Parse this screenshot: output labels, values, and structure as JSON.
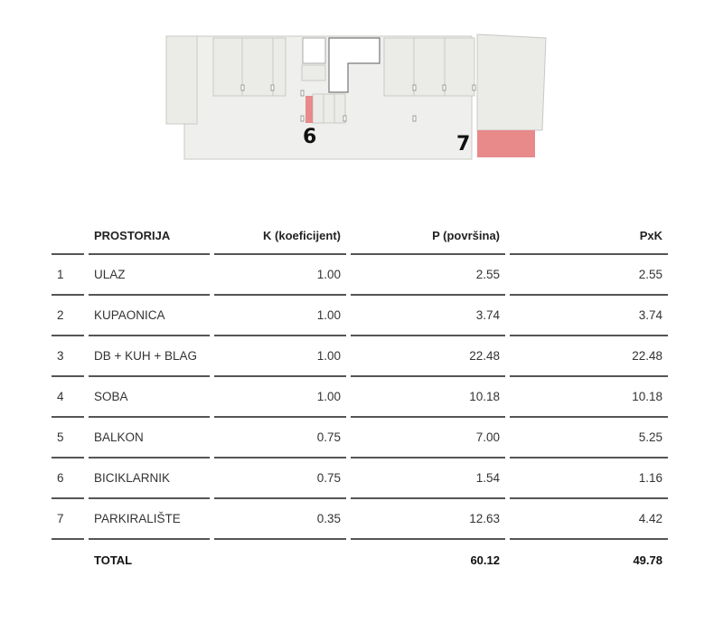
{
  "plan": {
    "labels": [
      "6",
      "7"
    ],
    "highlight_color": "#e8898a"
  },
  "table": {
    "headers": [
      "",
      "PROSTORIJA",
      "K (koeficijent)",
      "P (površina)",
      "PxK"
    ],
    "rows": [
      {
        "no": "1",
        "name": "ULAZ",
        "k": "1.00",
        "p": "2.55",
        "pk": "2.55"
      },
      {
        "no": "2",
        "name": "KUPAONICA",
        "k": "1.00",
        "p": "3.74",
        "pk": "3.74"
      },
      {
        "no": "3",
        "name": "DB + KUH + BLAG",
        "k": "1.00",
        "p": "22.48",
        "pk": "22.48"
      },
      {
        "no": "4",
        "name": "SOBA",
        "k": "1.00",
        "p": "10.18",
        "pk": "10.18"
      },
      {
        "no": "5",
        "name": "BALKON",
        "k": "0.75",
        "p": "7.00",
        "pk": "5.25"
      },
      {
        "no": "6",
        "name": "BICIKLARNIK",
        "k": "0.75",
        "p": "1.54",
        "pk": "1.16"
      },
      {
        "no": "7",
        "name": "PARKIRALIŠTE",
        "k": "0.35",
        "p": "12.63",
        "pk": "4.42"
      }
    ],
    "total": {
      "label": "TOTAL",
      "p": "60.12",
      "pk": "49.78"
    }
  }
}
